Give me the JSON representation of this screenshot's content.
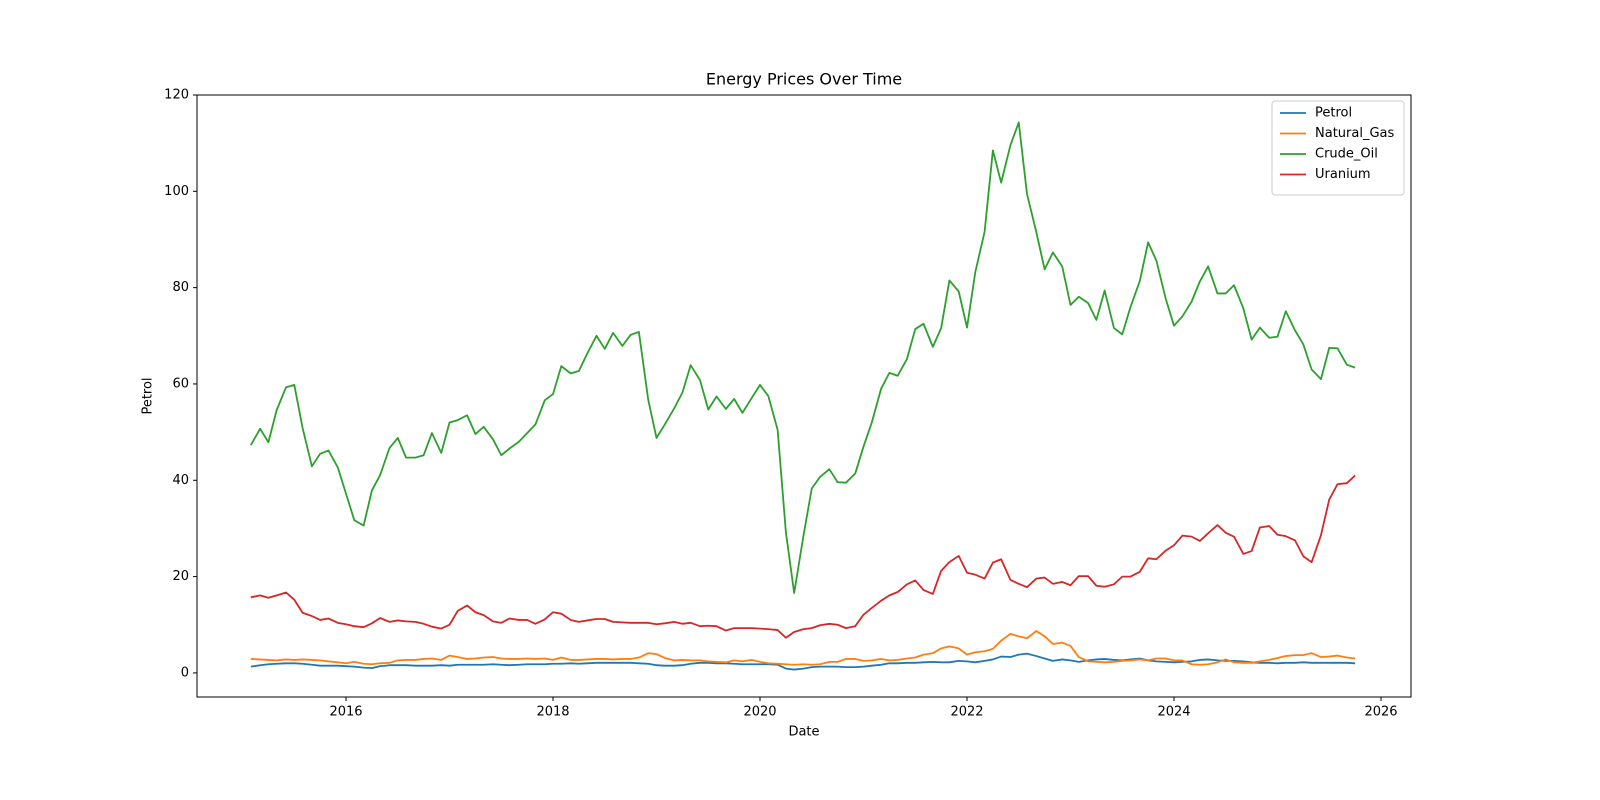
{
  "chart_data": {
    "type": "line",
    "title": "Energy Prices Over Time",
    "x_label": "Date",
    "y_label": "Petrol",
    "x": [
      2015.08,
      2015.17,
      2015.25,
      2015.33,
      2015.42,
      2015.5,
      2015.58,
      2015.67,
      2015.75,
      2015.83,
      2015.92,
      2016,
      2016.08,
      2016.17,
      2016.25,
      2016.33,
      2016.42,
      2016.5,
      2016.58,
      2016.67,
      2016.75,
      2016.83,
      2016.92,
      2017,
      2017.08,
      2017.17,
      2017.25,
      2017.33,
      2017.42,
      2017.5,
      2017.58,
      2017.67,
      2017.75,
      2017.83,
      2017.92,
      2018,
      2018.08,
      2018.17,
      2018.25,
      2018.33,
      2018.42,
      2018.5,
      2018.58,
      2018.67,
      2018.75,
      2018.83,
      2018.92,
      2019,
      2019.08,
      2019.17,
      2019.25,
      2019.33,
      2019.42,
      2019.5,
      2019.58,
      2019.67,
      2019.75,
      2019.83,
      2019.92,
      2020,
      2020.08,
      2020.17,
      2020.25,
      2020.33,
      2020.42,
      2020.5,
      2020.58,
      2020.67,
      2020.75,
      2020.83,
      2020.92,
      2021,
      2021.08,
      2021.17,
      2021.25,
      2021.33,
      2021.42,
      2021.5,
      2021.58,
      2021.67,
      2021.75,
      2021.83,
      2021.92,
      2022,
      2022.08,
      2022.17,
      2022.25,
      2022.33,
      2022.42,
      2022.5,
      2022.58,
      2022.67,
      2022.75,
      2022.83,
      2022.92,
      2023,
      2023.08,
      2023.17,
      2023.25,
      2023.33,
      2023.42,
      2023.5,
      2023.58,
      2023.67,
      2023.75,
      2023.83,
      2023.92,
      2024,
      2024.08,
      2024.17,
      2024.25,
      2024.33,
      2024.42,
      2024.5,
      2024.58,
      2024.67,
      2024.75,
      2024.83,
      2024.92,
      2025,
      2025.08,
      2025.17,
      2025.25,
      2025.33,
      2025.42,
      2025.5,
      2025.58,
      2025.67,
      2025.75
    ],
    "series": [
      {
        "name": "Petrol",
        "color": "#1f77b4",
        "values": [
          1.3,
          1.6,
          1.8,
          1.9,
          2.0,
          2.0,
          1.9,
          1.7,
          1.5,
          1.5,
          1.5,
          1.4,
          1.3,
          1.1,
          1.0,
          1.4,
          1.6,
          1.6,
          1.6,
          1.5,
          1.5,
          1.5,
          1.6,
          1.5,
          1.7,
          1.7,
          1.7,
          1.7,
          1.8,
          1.7,
          1.6,
          1.7,
          1.8,
          1.8,
          1.8,
          1.9,
          1.9,
          2.0,
          1.9,
          2.0,
          2.1,
          2.1,
          2.1,
          2.1,
          2.1,
          2.0,
          1.9,
          1.6,
          1.5,
          1.5,
          1.6,
          1.9,
          2.1,
          2.1,
          2.0,
          2.0,
          1.9,
          1.8,
          1.8,
          1.8,
          1.8,
          1.7,
          0.9,
          0.7,
          0.9,
          1.2,
          1.3,
          1.3,
          1.3,
          1.2,
          1.2,
          1.3,
          1.5,
          1.7,
          2.0,
          2.0,
          2.1,
          2.1,
          2.2,
          2.3,
          2.2,
          2.2,
          2.5,
          2.4,
          2.2,
          2.5,
          2.8,
          3.4,
          3.3,
          3.8,
          4.0,
          3.5,
          3.0,
          2.5,
          2.8,
          2.6,
          2.3,
          2.6,
          2.8,
          2.9,
          2.7,
          2.6,
          2.8,
          3.0,
          2.6,
          2.4,
          2.3,
          2.2,
          2.3,
          2.4,
          2.7,
          2.8,
          2.6,
          2.5,
          2.5,
          2.4,
          2.2,
          2.1,
          2.1,
          2.0,
          2.1,
          2.1,
          2.2,
          2.1,
          2.1,
          2.1,
          2.1,
          2.1,
          2.0
        ]
      },
      {
        "name": "Natural_Gas",
        "color": "#ff7f0e",
        "values": [
          2.9,
          2.8,
          2.7,
          2.6,
          2.8,
          2.7,
          2.8,
          2.7,
          2.6,
          2.4,
          2.2,
          2.0,
          2.3,
          1.9,
          1.8,
          2.0,
          2.1,
          2.6,
          2.7,
          2.7,
          2.9,
          3.0,
          2.7,
          3.6,
          3.3,
          2.9,
          3.0,
          3.2,
          3.3,
          3.0,
          2.9,
          2.9,
          3.0,
          2.9,
          3.0,
          2.7,
          3.2,
          2.7,
          2.7,
          2.8,
          2.9,
          2.9,
          2.8,
          2.9,
          2.9,
          3.2,
          4.1,
          3.9,
          3.1,
          2.6,
          2.7,
          2.6,
          2.6,
          2.4,
          2.3,
          2.2,
          2.6,
          2.4,
          2.7,
          2.3,
          2.0,
          1.9,
          1.8,
          1.7,
          1.8,
          1.7,
          1.8,
          2.3,
          2.3,
          2.9,
          2.9,
          2.5,
          2.6,
          2.9,
          2.6,
          2.7,
          3.0,
          3.2,
          3.8,
          4.1,
          5.1,
          5.5,
          5.1,
          3.8,
          4.3,
          4.5,
          5.0,
          6.7,
          8.1,
          7.6,
          7.2,
          8.7,
          7.6,
          6.0,
          6.3,
          5.6,
          3.3,
          2.4,
          2.3,
          2.2,
          2.3,
          2.5,
          2.6,
          2.8,
          2.6,
          3.0,
          3.0,
          2.6,
          2.6,
          1.8,
          1.7,
          1.8,
          2.2,
          2.8,
          2.2,
          2.1,
          2.1,
          2.4,
          2.7,
          3.1,
          3.5,
          3.7,
          3.7,
          4.1,
          3.3,
          3.4,
          3.6,
          3.2,
          3.0
        ]
      },
      {
        "name": "Crude_Oil",
        "color": "#2ca02c",
        "values": [
          47.3,
          50.7,
          47.9,
          54.6,
          59.3,
          59.8,
          50.9,
          42.9,
          45.5,
          46.2,
          42.7,
          37.2,
          31.7,
          30.6,
          37.9,
          41.1,
          46.7,
          48.8,
          44.7,
          44.7,
          45.2,
          49.8,
          45.7,
          52.0,
          52.5,
          53.5,
          49.6,
          51.1,
          48.5,
          45.2,
          46.6,
          48.0,
          49.8,
          51.6,
          56.6,
          57.9,
          63.7,
          62.2,
          62.7,
          66.3,
          70.0,
          67.3,
          70.6,
          67.9,
          70.2,
          70.8,
          56.7,
          48.8,
          51.6,
          54.9,
          58.2,
          63.9,
          60.8,
          54.7,
          57.4,
          54.8,
          56.9,
          54.0,
          57.1,
          59.8,
          57.5,
          50.5,
          29.2,
          16.6,
          28.5,
          38.3,
          40.7,
          42.3,
          39.6,
          39.5,
          41.4,
          47.0,
          52.0,
          59.0,
          62.3,
          61.7,
          65.2,
          71.4,
          72.5,
          67.7,
          71.6,
          81.5,
          79.2,
          71.7,
          83.2,
          91.6,
          108.5,
          101.8,
          109.6,
          114.3,
          99.4,
          91.5,
          83.8,
          87.3,
          84.4,
          76.4,
          78.1,
          76.8,
          73.3,
          79.4,
          71.6,
          70.3,
          76.0,
          81.4,
          89.4,
          85.6,
          77.7,
          72.1,
          74.0,
          77.1,
          81.3,
          84.4,
          78.8,
          78.8,
          80.5,
          75.7,
          69.2,
          71.7,
          69.6,
          69.8,
          75.1,
          71.1,
          68.2,
          63.0,
          61.0,
          67.5,
          67.4,
          64.0,
          63.4
        ]
      },
      {
        "name": "Uranium",
        "color": "#d62728",
        "values": [
          15.7,
          16.1,
          15.6,
          16.1,
          16.7,
          15.2,
          12.5,
          11.8,
          11.0,
          11.3,
          10.4,
          10.1,
          9.7,
          9.5,
          10.3,
          11.4,
          10.6,
          10.9,
          10.7,
          10.6,
          10.2,
          9.6,
          9.2,
          10.0,
          12.9,
          14.0,
          12.6,
          12.0,
          10.7,
          10.4,
          11.3,
          11.0,
          11.0,
          10.2,
          11.1,
          12.6,
          12.3,
          11.0,
          10.6,
          10.9,
          11.2,
          11.2,
          10.6,
          10.5,
          10.4,
          10.4,
          10.4,
          10.1,
          10.3,
          10.6,
          10.2,
          10.4,
          9.7,
          9.8,
          9.7,
          8.8,
          9.3,
          9.3,
          9.3,
          9.2,
          9.1,
          8.9,
          7.3,
          8.5,
          9.1,
          9.3,
          9.9,
          10.2,
          10.0,
          9.3,
          9.7,
          12.1,
          13.5,
          15.0,
          16.1,
          16.8,
          18.4,
          19.2,
          17.2,
          16.4,
          21.2,
          23.0,
          24.3,
          20.8,
          20.4,
          19.6,
          22.9,
          23.6,
          19.3,
          18.5,
          17.8,
          19.6,
          19.8,
          18.5,
          18.9,
          18.2,
          20.1,
          20.1,
          18.1,
          17.9,
          18.4,
          20.0,
          20.0,
          21.0,
          23.8,
          23.6,
          25.4,
          26.5,
          28.5,
          28.3,
          27.4,
          29.0,
          30.7,
          29.1,
          28.3,
          24.7,
          25.3,
          30.2,
          30.5,
          28.7,
          28.4,
          27.5,
          24.2,
          23.0,
          28.6,
          36.0,
          39.2,
          39.4,
          41.0
        ]
      }
    ],
    "xlim": [
      2014.56,
      2026.29
    ],
    "xticks": [
      2016,
      2018,
      2020,
      2022,
      2024,
      2026
    ],
    "ylim": [
      -5,
      120
    ],
    "yticks": [
      0,
      20,
      40,
      60,
      80,
      100,
      120
    ],
    "grid": false,
    "legend": "upper right"
  }
}
